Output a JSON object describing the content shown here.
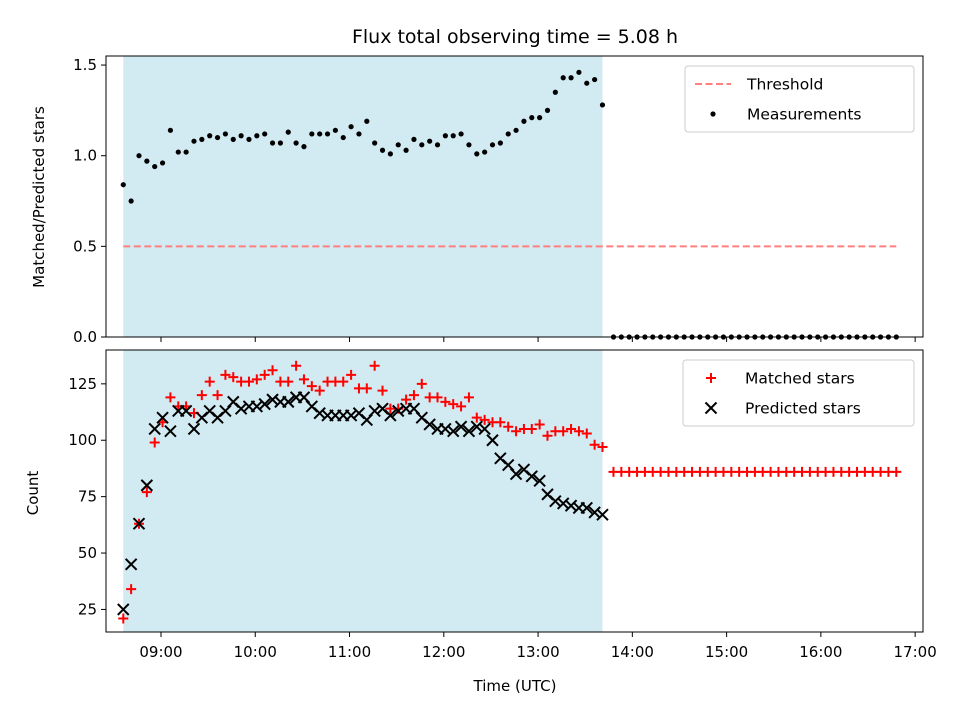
{
  "chart_data": [
    {
      "type": "scatter",
      "title": "Flux total observing time = 5.08 h",
      "ylabel": "Matched/Predicted stars",
      "xlabel": "",
      "xlim": [
        "08:25",
        "17:05"
      ],
      "ylim": [
        0,
        1.55
      ],
      "yticks": [
        0,
        0.5,
        1.0,
        1.5
      ],
      "ytick_labels": [
        "0.0",
        "0.5",
        "1.0",
        "1.5"
      ],
      "xticks": [
        "09:00",
        "10:00",
        "11:00",
        "12:00",
        "13:00",
        "14:00",
        "15:00",
        "16:00",
        "17:00"
      ],
      "show_xtick_labels": false,
      "legend_position": "top-right",
      "shaded_region": {
        "from": "08:36",
        "to": "13:41",
        "color": "#add8e6"
      },
      "series": [
        {
          "name": "Threshold",
          "kind": "dashed-line",
          "color": "#ff7f7f",
          "x": [
            "08:36",
            "16:48"
          ],
          "y": [
            0.5,
            0.5
          ]
        },
        {
          "name": "Measurements",
          "kind": "dot",
          "color": "#000000",
          "x": [
            "08:36",
            "08:41",
            "08:46",
            "08:51",
            "08:56",
            "09:01",
            "09:06",
            "09:11",
            "09:16",
            "09:21",
            "09:26",
            "09:31",
            "09:36",
            "09:41",
            "09:46",
            "09:51",
            "09:56",
            "10:01",
            "10:06",
            "10:11",
            "10:16",
            "10:21",
            "10:26",
            "10:31",
            "10:36",
            "10:41",
            "10:46",
            "10:51",
            "10:56",
            "11:01",
            "11:06",
            "11:11",
            "11:16",
            "11:21",
            "11:26",
            "11:31",
            "11:36",
            "11:41",
            "11:46",
            "11:51",
            "11:56",
            "12:01",
            "12:06",
            "12:11",
            "12:16",
            "12:21",
            "12:26",
            "12:31",
            "12:36",
            "12:41",
            "12:46",
            "12:51",
            "12:56",
            "13:01",
            "13:06",
            "13:11",
            "13:16",
            "13:21",
            "13:26",
            "13:31",
            "13:36",
            "13:41",
            "13:48",
            "13:53",
            "13:58",
            "14:03",
            "14:08",
            "14:13",
            "14:18",
            "14:23",
            "14:28",
            "14:33",
            "14:38",
            "14:43",
            "14:48",
            "14:53",
            "14:58",
            "15:03",
            "15:08",
            "15:13",
            "15:18",
            "15:23",
            "15:28",
            "15:33",
            "15:38",
            "15:43",
            "15:48",
            "15:53",
            "15:58",
            "16:03",
            "16:08",
            "16:13",
            "16:18",
            "16:23",
            "16:28",
            "16:33",
            "16:38",
            "16:43",
            "16:48"
          ],
          "y": [
            0.84,
            0.75,
            1.0,
            0.97,
            0.94,
            0.96,
            1.14,
            1.02,
            1.02,
            1.08,
            1.09,
            1.11,
            1.1,
            1.12,
            1.09,
            1.11,
            1.09,
            1.11,
            1.12,
            1.07,
            1.07,
            1.13,
            1.07,
            1.05,
            1.12,
            1.12,
            1.12,
            1.14,
            1.1,
            1.16,
            1.12,
            1.19,
            1.07,
            1.03,
            1.01,
            1.06,
            1.03,
            1.09,
            1.06,
            1.08,
            1.06,
            1.11,
            1.11,
            1.12,
            1.06,
            1.01,
            1.02,
            1.06,
            1.07,
            1.12,
            1.14,
            1.19,
            1.21,
            1.21,
            1.25,
            1.35,
            1.43,
            1.43,
            1.46,
            1.4,
            1.42,
            1.28,
            0,
            0,
            0,
            0,
            0,
            0,
            0,
            0,
            0,
            0,
            0,
            0,
            0,
            0,
            0,
            0,
            0,
            0,
            0,
            0,
            0,
            0,
            0,
            0,
            0,
            0,
            0,
            0,
            0,
            0,
            0,
            0,
            0,
            0,
            0,
            0,
            0
          ]
        }
      ]
    },
    {
      "type": "scatter",
      "title": "",
      "ylabel": "Count",
      "xlabel": "Time (UTC)",
      "xlim": [
        "08:25",
        "17:05"
      ],
      "ylim": [
        15,
        140
      ],
      "yticks": [
        25,
        50,
        75,
        100,
        125
      ],
      "ytick_labels": [
        "25",
        "50",
        "75",
        "100",
        "125"
      ],
      "xticks": [
        "09:00",
        "10:00",
        "11:00",
        "12:00",
        "13:00",
        "14:00",
        "15:00",
        "16:00",
        "17:00"
      ],
      "xtick_labels": [
        "09:00",
        "10:00",
        "11:00",
        "12:00",
        "13:00",
        "14:00",
        "15:00",
        "16:00",
        "17:00"
      ],
      "legend_position": "top-right",
      "shaded_region": {
        "from": "08:36",
        "to": "13:41",
        "color": "#add8e6"
      },
      "series": [
        {
          "name": "Matched stars",
          "kind": "plus",
          "color": "#ff0000",
          "x": [
            "08:36",
            "08:41",
            "08:46",
            "08:51",
            "08:56",
            "09:01",
            "09:06",
            "09:11",
            "09:16",
            "09:21",
            "09:26",
            "09:31",
            "09:36",
            "09:41",
            "09:46",
            "09:51",
            "09:56",
            "10:01",
            "10:06",
            "10:11",
            "10:16",
            "10:21",
            "10:26",
            "10:31",
            "10:36",
            "10:41",
            "10:46",
            "10:51",
            "10:56",
            "11:01",
            "11:06",
            "11:11",
            "11:16",
            "11:21",
            "11:26",
            "11:31",
            "11:36",
            "11:41",
            "11:46",
            "11:51",
            "11:56",
            "12:01",
            "12:06",
            "12:11",
            "12:16",
            "12:21",
            "12:26",
            "12:31",
            "12:36",
            "12:41",
            "12:46",
            "12:51",
            "12:56",
            "13:01",
            "13:06",
            "13:11",
            "13:16",
            "13:21",
            "13:26",
            "13:31",
            "13:36",
            "13:41",
            "13:48",
            "13:53",
            "13:58",
            "14:03",
            "14:08",
            "14:13",
            "14:18",
            "14:23",
            "14:28",
            "14:33",
            "14:38",
            "14:43",
            "14:48",
            "14:53",
            "14:58",
            "15:03",
            "15:08",
            "15:13",
            "15:18",
            "15:23",
            "15:28",
            "15:33",
            "15:38",
            "15:43",
            "15:48",
            "15:53",
            "15:58",
            "16:03",
            "16:08",
            "16:13",
            "16:18",
            "16:23",
            "16:28",
            "16:33",
            "16:38",
            "16:43",
            "16:48"
          ],
          "y": [
            21,
            34,
            63,
            77,
            99,
            108,
            119,
            115,
            115,
            112,
            120,
            126,
            120,
            129,
            128,
            126,
            126,
            127,
            129,
            131,
            126,
            126,
            133,
            127,
            124,
            122,
            126,
            126,
            126,
            129,
            123,
            123,
            133,
            122,
            114,
            114,
            118,
            120,
            125,
            119,
            119,
            117,
            116,
            115,
            119,
            110,
            109,
            108,
            108,
            106,
            104,
            105,
            105,
            107,
            102,
            104,
            104,
            105,
            104,
            103,
            98,
            97,
            86,
            86,
            86,
            86,
            86,
            86,
            86,
            86,
            86,
            86,
            86,
            86,
            86,
            86,
            86,
            86,
            86,
            86,
            86,
            86,
            86,
            86,
            86,
            86,
            86,
            86,
            86,
            86,
            86,
            86,
            86,
            86,
            86,
            86,
            86,
            86,
            86
          ]
        },
        {
          "name": "Predicted stars",
          "kind": "x",
          "color": "#000000",
          "x": [
            "08:36",
            "08:41",
            "08:46",
            "08:51",
            "08:56",
            "09:01",
            "09:06",
            "09:11",
            "09:16",
            "09:21",
            "09:26",
            "09:31",
            "09:36",
            "09:41",
            "09:46",
            "09:51",
            "09:56",
            "10:01",
            "10:06",
            "10:11",
            "10:16",
            "10:21",
            "10:26",
            "10:31",
            "10:36",
            "10:41",
            "10:46",
            "10:51",
            "10:56",
            "11:01",
            "11:06",
            "11:11",
            "11:16",
            "11:21",
            "11:26",
            "11:31",
            "11:36",
            "11:41",
            "11:46",
            "11:51",
            "11:56",
            "12:01",
            "12:06",
            "12:11",
            "12:16",
            "12:21",
            "12:26",
            "12:31",
            "12:36",
            "12:41",
            "12:46",
            "12:51",
            "12:56",
            "13:01",
            "13:06",
            "13:11",
            "13:16",
            "13:21",
            "13:26",
            "13:31",
            "13:36",
            "13:41"
          ],
          "y": [
            25,
            45,
            63,
            80,
            105,
            110,
            104,
            113,
            113,
            105,
            110,
            113,
            110,
            113,
            117,
            114,
            115,
            115,
            116,
            118,
            117,
            117,
            119,
            119,
            115,
            112,
            111,
            111,
            111,
            111,
            112,
            109,
            113,
            114,
            111,
            113,
            114,
            114,
            110,
            107,
            105,
            105,
            104,
            106,
            104,
            106,
            105,
            100,
            92,
            89,
            85,
            87,
            84,
            82,
            76,
            73,
            72,
            71,
            70,
            70,
            68,
            67
          ]
        }
      ]
    }
  ]
}
